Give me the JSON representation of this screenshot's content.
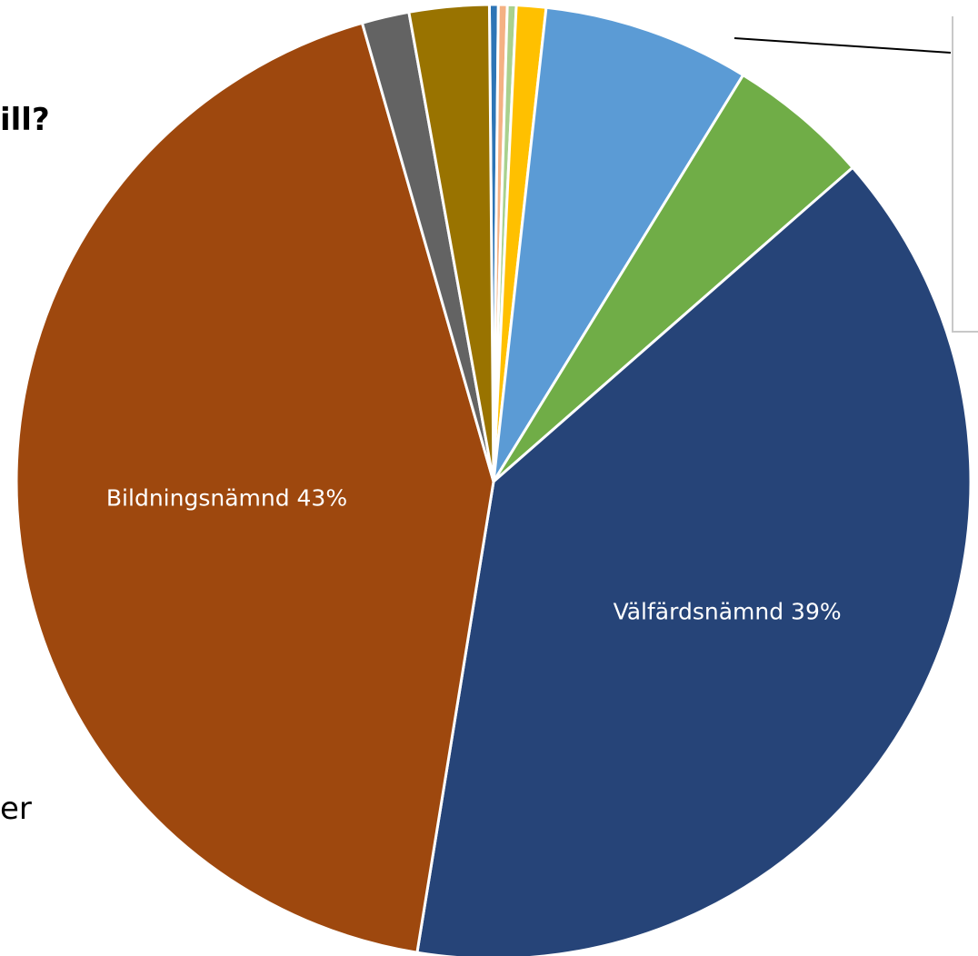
{
  "fragments": {
    "top_text": "ill?",
    "bottom_text": "er"
  },
  "chart_data": {
    "type": "pie",
    "title": "",
    "slices": [
      {
        "value": 0.3,
        "color": "#2e75b6"
      },
      {
        "value": 0.3,
        "color": "#f4b183"
      },
      {
        "value": 0.3,
        "color": "#a9d18e"
      },
      {
        "value": 1.0,
        "color": "#ffc000"
      },
      {
        "value": 7.0,
        "color": "#5b9bd5"
      },
      {
        "value": 4.8,
        "color": "#70ad47"
      },
      {
        "label": "Välfärdsnämnd",
        "value": 39,
        "display": "Välfärdsnämnd 39%",
        "color": "#264478"
      },
      {
        "label": "Bildningsnämnd",
        "value": 43,
        "display": "Bildningsnämnd 43%",
        "color": "#9e480e"
      },
      {
        "value": 1.6,
        "color": "#636363"
      },
      {
        "value": 2.7,
        "color": "#997300"
      }
    ]
  }
}
